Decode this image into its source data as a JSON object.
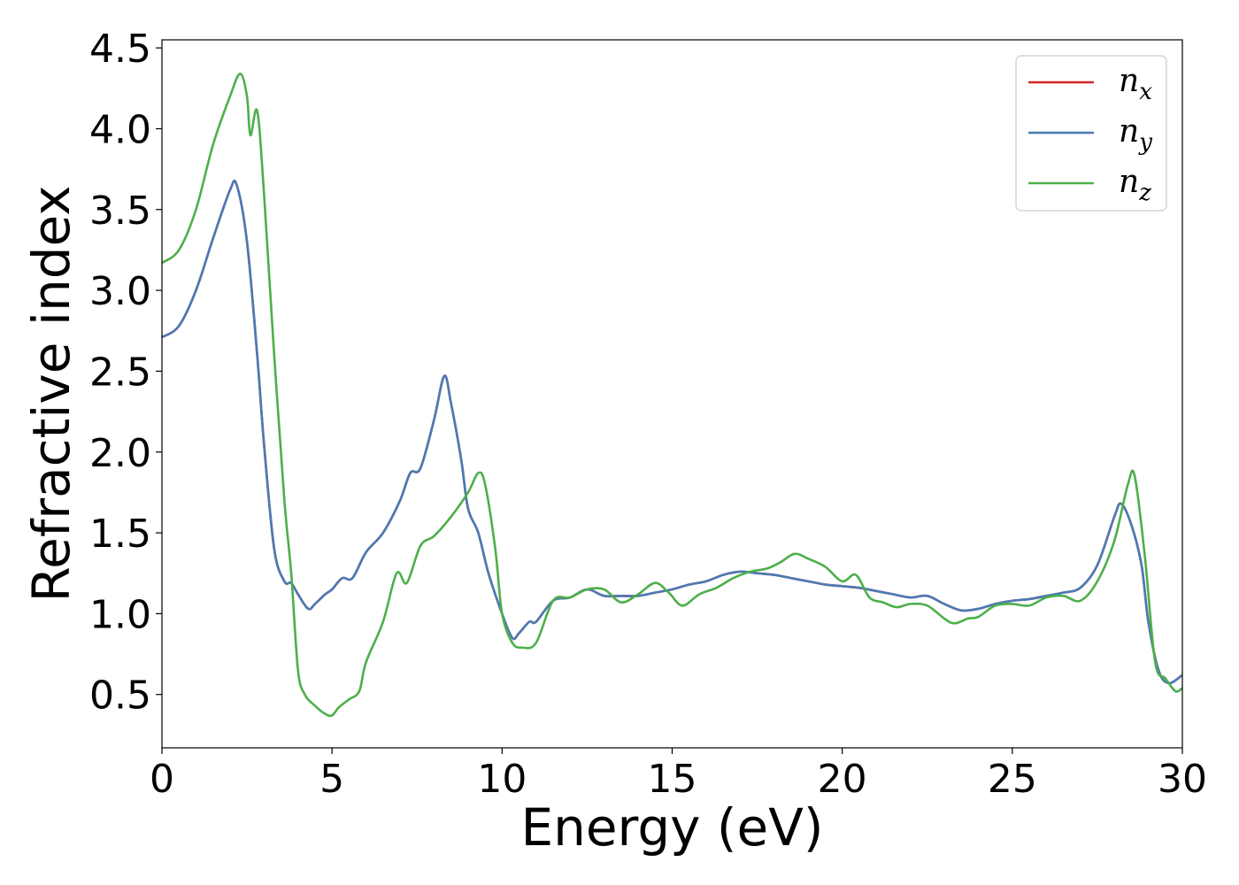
{
  "chart_data": {
    "type": "line",
    "title": "",
    "xlabel": "Energy (eV)",
    "ylabel": "Refractive index",
    "xlim": [
      0,
      30
    ],
    "ylim": [
      0.17,
      4.55
    ],
    "xticks": [
      0,
      5,
      10,
      15,
      20,
      25,
      30
    ],
    "xtick_labels": [
      "0",
      "5",
      "10",
      "15",
      "20",
      "25",
      "30"
    ],
    "yticks": [
      0.5,
      1.0,
      1.5,
      2.0,
      2.5,
      3.0,
      3.5,
      4.0,
      4.5
    ],
    "ytick_labels": [
      "0.5",
      "1.0",
      "1.5",
      "2.0",
      "2.5",
      "3.0",
      "3.5",
      "4.0",
      "4.5"
    ],
    "grid": false,
    "legend_position": "top-right",
    "series": [
      {
        "name": "n_x",
        "label_base": "n",
        "label_sub": "x",
        "color": "#d62728",
        "x": [
          0,
          0.5,
          1.0,
          1.5,
          2.0,
          2.2,
          2.5,
          2.8,
          3.0,
          3.3,
          3.6,
          3.8,
          4.0,
          4.3,
          4.5,
          4.8,
          5.0,
          5.3,
          5.6,
          6.0,
          6.5,
          7.0,
          7.3,
          7.6,
          8.0,
          8.3,
          8.5,
          8.8,
          9.0,
          9.3,
          9.6,
          10.0,
          10.3,
          10.5,
          10.8,
          11.0,
          11.5,
          12.0,
          12.5,
          13.0,
          13.5,
          14.0,
          14.5,
          15.0,
          15.5,
          16.0,
          16.5,
          17.0,
          17.5,
          18.0,
          18.5,
          19.0,
          19.5,
          20.0,
          20.5,
          21.0,
          21.5,
          22.0,
          22.5,
          23.0,
          23.5,
          24.0,
          24.5,
          25.0,
          25.5,
          26.0,
          26.5,
          27.0,
          27.5,
          28.0,
          28.2,
          28.5,
          28.8,
          29.0,
          29.3,
          29.6,
          30.0
        ],
        "y": [
          2.71,
          2.78,
          3.0,
          3.32,
          3.62,
          3.65,
          3.3,
          2.6,
          2.05,
          1.4,
          1.2,
          1.19,
          1.12,
          1.03,
          1.06,
          1.12,
          1.15,
          1.22,
          1.22,
          1.38,
          1.5,
          1.7,
          1.87,
          1.9,
          2.2,
          2.47,
          2.3,
          1.95,
          1.65,
          1.5,
          1.25,
          1.0,
          0.85,
          0.88,
          0.95,
          0.95,
          1.08,
          1.1,
          1.15,
          1.11,
          1.11,
          1.11,
          1.13,
          1.15,
          1.18,
          1.2,
          1.24,
          1.26,
          1.25,
          1.24,
          1.22,
          1.2,
          1.18,
          1.17,
          1.16,
          1.14,
          1.12,
          1.1,
          1.11,
          1.06,
          1.02,
          1.03,
          1.06,
          1.08,
          1.09,
          1.11,
          1.13,
          1.16,
          1.3,
          1.6,
          1.68,
          1.55,
          1.3,
          0.95,
          0.65,
          0.57,
          0.62
        ]
      },
      {
        "name": "n_y",
        "label_base": "n",
        "label_sub": "y",
        "color": "#4a7ab5",
        "x": [
          0,
          0.5,
          1.0,
          1.5,
          2.0,
          2.2,
          2.5,
          2.8,
          3.0,
          3.3,
          3.6,
          3.8,
          4.0,
          4.3,
          4.5,
          4.8,
          5.0,
          5.3,
          5.6,
          6.0,
          6.5,
          7.0,
          7.3,
          7.6,
          8.0,
          8.3,
          8.5,
          8.8,
          9.0,
          9.3,
          9.6,
          10.0,
          10.3,
          10.5,
          10.8,
          11.0,
          11.5,
          12.0,
          12.5,
          13.0,
          13.5,
          14.0,
          14.5,
          15.0,
          15.5,
          16.0,
          16.5,
          17.0,
          17.5,
          18.0,
          18.5,
          19.0,
          19.5,
          20.0,
          20.5,
          21.0,
          21.5,
          22.0,
          22.5,
          23.0,
          23.5,
          24.0,
          24.5,
          25.0,
          25.5,
          26.0,
          26.5,
          27.0,
          27.5,
          28.0,
          28.2,
          28.5,
          28.8,
          29.0,
          29.3,
          29.6,
          30.0
        ],
        "y": [
          2.71,
          2.78,
          3.0,
          3.32,
          3.62,
          3.65,
          3.3,
          2.6,
          2.05,
          1.4,
          1.2,
          1.19,
          1.12,
          1.03,
          1.06,
          1.12,
          1.15,
          1.22,
          1.22,
          1.38,
          1.5,
          1.7,
          1.87,
          1.9,
          2.2,
          2.47,
          2.3,
          1.95,
          1.65,
          1.5,
          1.25,
          1.0,
          0.85,
          0.88,
          0.95,
          0.95,
          1.08,
          1.1,
          1.15,
          1.11,
          1.11,
          1.11,
          1.13,
          1.15,
          1.18,
          1.2,
          1.24,
          1.26,
          1.25,
          1.24,
          1.22,
          1.2,
          1.18,
          1.17,
          1.16,
          1.14,
          1.12,
          1.1,
          1.11,
          1.06,
          1.02,
          1.03,
          1.06,
          1.08,
          1.09,
          1.11,
          1.13,
          1.16,
          1.3,
          1.6,
          1.68,
          1.55,
          1.3,
          0.95,
          0.65,
          0.57,
          0.62
        ]
      },
      {
        "name": "n_z",
        "label_base": "n",
        "label_sub": "z",
        "color": "#4daf4a",
        "x": [
          0,
          0.5,
          1.0,
          1.5,
          2.0,
          2.3,
          2.5,
          2.6,
          2.8,
          3.0,
          3.3,
          3.6,
          3.8,
          4.0,
          4.2,
          4.5,
          4.8,
          5.0,
          5.2,
          5.5,
          5.8,
          6.0,
          6.5,
          6.9,
          7.2,
          7.6,
          8.0,
          8.5,
          9.0,
          9.3,
          9.5,
          9.8,
          10.0,
          10.3,
          10.6,
          11.0,
          11.5,
          12.0,
          12.5,
          13.0,
          13.5,
          14.0,
          14.5,
          14.9,
          15.3,
          15.8,
          16.3,
          16.8,
          17.3,
          17.8,
          18.2,
          18.6,
          19.0,
          19.5,
          20.0,
          20.4,
          20.8,
          21.2,
          21.6,
          22.0,
          22.5,
          23.0,
          23.3,
          23.7,
          24.0,
          24.5,
          25.0,
          25.5,
          26.0,
          26.5,
          27.0,
          27.5,
          28.0,
          28.4,
          28.6,
          28.9,
          29.2,
          29.5,
          29.8,
          30.0
        ],
        "y": [
          3.17,
          3.25,
          3.5,
          3.9,
          4.2,
          4.34,
          4.2,
          3.96,
          4.11,
          3.6,
          2.6,
          1.7,
          1.25,
          0.65,
          0.5,
          0.43,
          0.38,
          0.37,
          0.42,
          0.47,
          0.52,
          0.7,
          0.95,
          1.25,
          1.19,
          1.42,
          1.48,
          1.6,
          1.75,
          1.87,
          1.8,
          1.4,
          1.0,
          0.82,
          0.79,
          0.82,
          1.08,
          1.1,
          1.15,
          1.15,
          1.07,
          1.12,
          1.19,
          1.13,
          1.05,
          1.12,
          1.16,
          1.22,
          1.26,
          1.28,
          1.32,
          1.37,
          1.34,
          1.29,
          1.2,
          1.24,
          1.1,
          1.07,
          1.04,
          1.06,
          1.05,
          0.97,
          0.94,
          0.97,
          0.98,
          1.05,
          1.06,
          1.05,
          1.1,
          1.11,
          1.08,
          1.2,
          1.45,
          1.8,
          1.85,
          1.35,
          0.7,
          0.6,
          0.52,
          0.54
        ]
      }
    ]
  }
}
